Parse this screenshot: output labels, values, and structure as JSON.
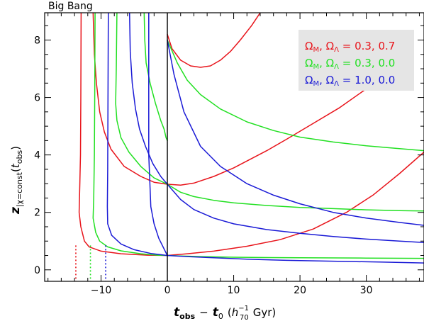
{
  "chart_data": {
    "type": "line",
    "annotation": "Big Bang",
    "xlabel": {
      "t": "t",
      "obs": "obs",
      "minus": "−",
      "t0": "t",
      "zero": "0",
      "open": "(",
      "h": "h",
      "h_sup": "−1",
      "h_sub": "70",
      "gyr": "Gyr)"
    },
    "ylabel": {
      "z": "z",
      "sub": "|χ=const",
      "open": "(",
      "t": "t",
      "obs": "obs",
      "close": ")"
    },
    "xlim": [
      -18.5,
      38.7
    ],
    "ylim": [
      -0.4,
      8.95
    ],
    "xticks": [
      -10,
      0,
      10,
      20,
      30
    ],
    "yticks": [
      0,
      2,
      4,
      6,
      8
    ],
    "vertical_line_x": 0,
    "legend": {
      "placement": "top-right",
      "background": "#e5e5e5",
      "entries": [
        {
          "omega_m": "Ω",
          "m_sub": "M",
          "sep": ",  ",
          "omega_l": "Ω",
          "l_sub": "Λ",
          "values": " = 0.3, 0.7",
          "color": "#e8141b"
        },
        {
          "omega_m": "Ω",
          "m_sub": "M",
          "sep": ",  ",
          "omega_l": "Ω",
          "l_sub": "Λ",
          "values": " = 0.3, 0.0",
          "color": "#22e022"
        },
        {
          "omega_m": "Ω",
          "m_sub": "M",
          "sep": ",  ",
          "omega_l": "Ω",
          "l_sub": "Λ",
          "values": " = 1.0, 0.0",
          "color": "#1a1ad6"
        }
      ]
    },
    "series": [
      {
        "color": "#e8141b",
        "big_bang_x": -13.8,
        "curves": [
          [
            [
              -13.0,
              8.95
            ],
            [
              -13.05,
              6
            ],
            [
              -13.1,
              4
            ],
            [
              -13.2,
              3
            ],
            [
              -13.3,
              2
            ],
            [
              -13.05,
              1.5
            ],
            [
              -12.5,
              1.0
            ],
            [
              -11.8,
              0.8
            ],
            [
              -10,
              0.65
            ],
            [
              -7,
              0.56
            ],
            [
              -3,
              0.51
            ],
            [
              0,
              0.5
            ]
          ],
          [
            [
              -11.2,
              8.95
            ],
            [
              -11.0,
              7.5
            ],
            [
              -10.7,
              6.5
            ],
            [
              -10.2,
              5.5
            ],
            [
              -9.5,
              4.8
            ],
            [
              -8.5,
              4.2
            ],
            [
              -6.5,
              3.6
            ],
            [
              -4,
              3.25
            ],
            [
              -2,
              3.05
            ],
            [
              0,
              2.98
            ]
          ],
          [
            [
              0,
              8.2
            ],
            [
              0.7,
              7.7
            ],
            [
              2,
              7.3
            ],
            [
              3.5,
              7.1
            ],
            [
              5,
              7.05
            ],
            [
              6.5,
              7.1
            ],
            [
              8,
              7.3
            ],
            [
              9.5,
              7.6
            ],
            [
              11,
              8.0
            ],
            [
              12.7,
              8.5
            ],
            [
              14,
              8.95
            ]
          ],
          [
            [
              0,
              2.98
            ],
            [
              2,
              2.95
            ],
            [
              4,
              3.02
            ],
            [
              7,
              3.25
            ],
            [
              10,
              3.55
            ],
            [
              15,
              4.15
            ],
            [
              18,
              4.55
            ],
            [
              22,
              5.1
            ],
            [
              26,
              5.65
            ],
            [
              30,
              6.3
            ],
            [
              33,
              6.8
            ]
          ],
          [
            [
              0,
              0.5
            ],
            [
              3,
              0.56
            ],
            [
              7,
              0.65
            ],
            [
              12,
              0.82
            ],
            [
              17,
              1.05
            ],
            [
              22,
              1.42
            ],
            [
              27,
              2.0
            ],
            [
              31,
              2.6
            ],
            [
              35,
              3.35
            ],
            [
              38.7,
              4.1
            ]
          ]
        ]
      },
      {
        "color": "#22e022",
        "big_bang_x": -11.6,
        "curves": [
          [
            [
              -10.9,
              8.95
            ],
            [
              -10.95,
              6
            ],
            [
              -11.0,
              4
            ],
            [
              -11.1,
              2.5
            ],
            [
              -11.2,
              1.8
            ],
            [
              -10.8,
              1.3
            ],
            [
              -10.2,
              1.0
            ],
            [
              -9,
              0.8
            ],
            [
              -7,
              0.66
            ],
            [
              -4,
              0.56
            ],
            [
              -1.5,
              0.51
            ],
            [
              0,
              0.5
            ]
          ],
          [
            [
              -7.6,
              8.95
            ],
            [
              -7.7,
              7
            ],
            [
              -7.8,
              5.8
            ],
            [
              -7.6,
              5.2
            ],
            [
              -7,
              4.6
            ],
            [
              -5.8,
              4.1
            ],
            [
              -4,
              3.6
            ],
            [
              -2,
              3.2
            ],
            [
              0,
              2.98
            ]
          ],
          [
            [
              -3.5,
              8.95
            ],
            [
              -3.4,
              8.0
            ],
            [
              -3.2,
              7.2
            ],
            [
              -2.6,
              6.5
            ],
            [
              -1.8,
              5.8
            ],
            [
              -1,
              5.2
            ],
            [
              -0.5,
              4.9
            ],
            [
              -0.2,
              4.6
            ],
            [
              0,
              4.5
            ]
          ],
          [
            [
              0,
              8.0
            ],
            [
              1.5,
              7.2
            ],
            [
              3,
              6.6
            ],
            [
              5,
              6.1
            ],
            [
              8,
              5.6
            ],
            [
              12,
              5.15
            ],
            [
              16,
              4.85
            ],
            [
              20,
              4.62
            ],
            [
              25,
              4.45
            ],
            [
              30,
              4.32
            ],
            [
              35,
              4.22
            ],
            [
              38.7,
              4.15
            ]
          ],
          [
            [
              0,
              2.98
            ],
            [
              2,
              2.7
            ],
            [
              4,
              2.55
            ],
            [
              7,
              2.42
            ],
            [
              10,
              2.33
            ],
            [
              15,
              2.24
            ],
            [
              20,
              2.17
            ],
            [
              25,
              2.13
            ],
            [
              30,
              2.09
            ],
            [
              35,
              2.06
            ],
            [
              38.7,
              2.05
            ]
          ],
          [
            [
              0,
              0.5
            ],
            [
              2,
              0.48
            ],
            [
              5,
              0.46
            ],
            [
              10,
              0.44
            ],
            [
              20,
              0.42
            ],
            [
              30,
              0.41
            ],
            [
              38.7,
              0.4
            ]
          ]
        ]
      },
      {
        "color": "#1a1ad6",
        "big_bang_x": -9.3,
        "curves": [
          [
            [
              -8.9,
              8.95
            ],
            [
              -8.95,
              6
            ],
            [
              -9.0,
              3.5
            ],
            [
              -9.05,
              2.2
            ],
            [
              -9.0,
              1.6
            ],
            [
              -8.4,
              1.2
            ],
            [
              -7,
              0.9
            ],
            [
              -5,
              0.7
            ],
            [
              -2.5,
              0.57
            ],
            [
              0,
              0.5
            ]
          ],
          [
            [
              -5.7,
              8.95
            ],
            [
              -5.6,
              7.6
            ],
            [
              -5.3,
              6.5
            ],
            [
              -4.8,
              5.6
            ],
            [
              -4.2,
              4.9
            ],
            [
              -3.3,
              4.3
            ],
            [
              -2.2,
              3.7
            ],
            [
              -1,
              3.25
            ],
            [
              0,
              2.98
            ]
          ],
          [
            [
              -2.8,
              8.95
            ],
            [
              -2.8,
              4
            ],
            [
              -2.5,
              2.2
            ],
            [
              -2.0,
              1.6
            ],
            [
              -1.3,
              1.1
            ],
            [
              0,
              0.5
            ]
          ],
          [
            [
              0,
              8.0
            ],
            [
              1,
              6.8
            ],
            [
              2.5,
              5.5
            ],
            [
              5,
              4.3
            ],
            [
              8,
              3.6
            ],
            [
              12,
              3.0
            ],
            [
              16,
              2.6
            ],
            [
              20,
              2.3
            ],
            [
              25,
              2.0
            ],
            [
              30,
              1.8
            ],
            [
              35,
              1.65
            ],
            [
              38.7,
              1.55
            ]
          ],
          [
            [
              0,
              2.98
            ],
            [
              2,
              2.45
            ],
            [
              4,
              2.1
            ],
            [
              7,
              1.8
            ],
            [
              10,
              1.6
            ],
            [
              15,
              1.4
            ],
            [
              20,
              1.27
            ],
            [
              25,
              1.16
            ],
            [
              30,
              1.07
            ],
            [
              35,
              1.0
            ],
            [
              38.7,
              0.95
            ]
          ],
          [
            [
              0,
              0.5
            ],
            [
              3,
              0.46
            ],
            [
              7,
              0.42
            ],
            [
              12,
              0.37
            ],
            [
              18,
              0.33
            ],
            [
              25,
              0.3
            ],
            [
              32,
              0.27
            ],
            [
              38.7,
              0.24
            ]
          ]
        ]
      }
    ]
  }
}
